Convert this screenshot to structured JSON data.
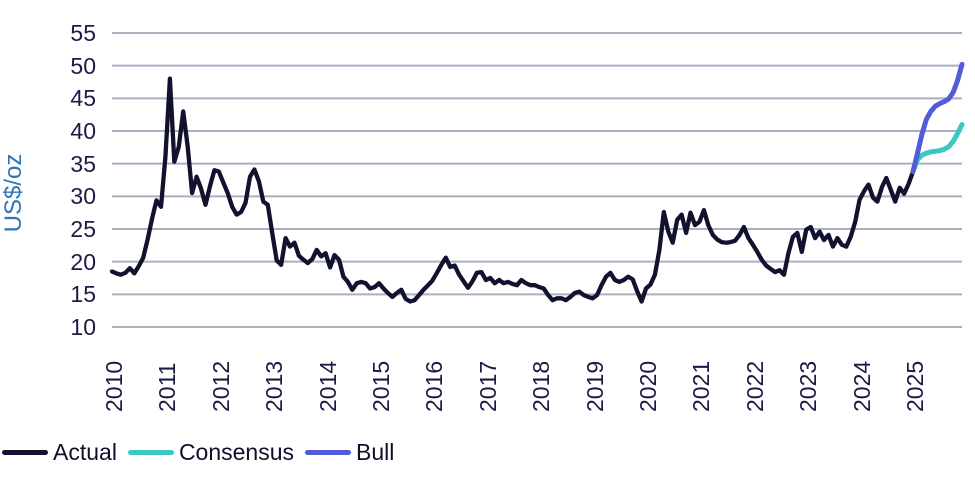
{
  "chart_data": {
    "type": "line",
    "title": "",
    "y_axis_title": "US$/oz",
    "ylim": [
      10,
      55
    ],
    "y_ticks": [
      55,
      50,
      45,
      40,
      35,
      30,
      25,
      20,
      15,
      10
    ],
    "x_tick_labels": [
      "2010",
      "2011",
      "2012",
      "2013",
      "2014",
      "2015",
      "2016",
      "2017",
      "2018",
      "2019",
      "2020",
      "2021",
      "2022",
      "2023",
      "2024",
      "2025"
    ],
    "points_per_year": 12,
    "x_count": 192,
    "grid": "horizontal",
    "legend_position": "bottom-left",
    "colors": {
      "gridline": "#a7b1c0",
      "axis_text": "#1b1b45",
      "y_axis_title": "#2e75b6",
      "legend_text": "#0f0f2b"
    },
    "series": [
      {
        "name": "Actual",
        "color": "#12122e",
        "x_start": 0,
        "values": [
          18.5,
          18.2,
          18.0,
          18.3,
          19.0,
          18.2,
          19.3,
          20.6,
          23.4,
          26.6,
          29.4,
          28.4,
          36.0,
          48.0,
          35.3,
          37.6,
          43.0,
          37.6,
          30.5,
          33.0,
          31.2,
          28.7,
          31.5,
          34.0,
          33.8,
          32.1,
          30.5,
          28.4,
          27.2,
          27.6,
          29.0,
          33.0,
          34.1,
          32.3,
          29.2,
          28.7,
          24.4,
          20.2,
          19.5,
          23.6,
          22.3,
          22.9,
          20.9,
          20.3,
          19.8,
          20.4,
          21.8,
          20.8,
          21.3,
          19.1,
          21.0,
          20.3,
          17.7,
          16.9,
          15.7,
          16.7,
          16.9,
          16.7,
          15.9,
          16.1,
          16.7,
          15.9,
          15.2,
          14.6,
          15.2,
          15.7,
          14.3,
          13.9,
          14.1,
          14.9,
          15.7,
          16.4,
          17.1,
          18.3,
          19.5,
          20.6,
          19.2,
          19.4,
          18.0,
          17.0,
          16.0,
          17.0,
          18.3,
          18.4,
          17.2,
          17.5,
          16.7,
          17.2,
          16.7,
          16.9,
          16.6,
          16.4,
          17.2,
          16.7,
          16.4,
          16.4,
          16.1,
          15.9,
          14.9,
          14.1,
          14.4,
          14.4,
          14.1,
          14.6,
          15.2,
          15.4,
          14.9,
          14.6,
          14.4,
          14.9,
          16.4,
          17.7,
          18.3,
          17.2,
          16.9,
          17.2,
          17.7,
          17.3,
          15.5,
          13.9,
          15.9,
          16.5,
          18.0,
          21.8,
          27.6,
          24.6,
          22.9,
          26.4,
          27.2,
          24.4,
          27.5,
          25.6,
          26.1,
          27.9,
          25.6,
          24.1,
          23.4,
          23.0,
          22.9,
          23.0,
          23.2,
          24.1,
          25.3,
          23.6,
          22.6,
          21.5,
          20.3,
          19.4,
          18.9,
          18.4,
          18.7,
          18.0,
          21.3,
          23.8,
          24.4,
          21.5,
          24.9,
          25.3,
          23.6,
          24.6,
          23.3,
          24.1,
          22.3,
          23.6,
          22.6,
          22.3,
          23.8,
          26.1,
          29.5,
          30.8,
          31.8,
          29.8,
          29.2,
          31.4,
          32.8,
          31.0,
          29.2,
          31.3,
          30.4,
          31.9,
          33.8
        ]
      },
      {
        "name": "Consensus",
        "color": "#3cc7c0",
        "x_start": 180,
        "values": [
          33.8,
          35.6,
          36.3,
          36.6,
          36.8,
          36.9,
          37.0,
          37.2,
          37.6,
          38.4,
          39.6,
          41.0
        ]
      },
      {
        "name": "Bull",
        "color": "#525bd8",
        "x_start": 180,
        "values": [
          33.8,
          36.6,
          39.5,
          41.8,
          43.0,
          43.8,
          44.2,
          44.5,
          44.9,
          45.9,
          47.7,
          50.2
        ]
      }
    ]
  }
}
